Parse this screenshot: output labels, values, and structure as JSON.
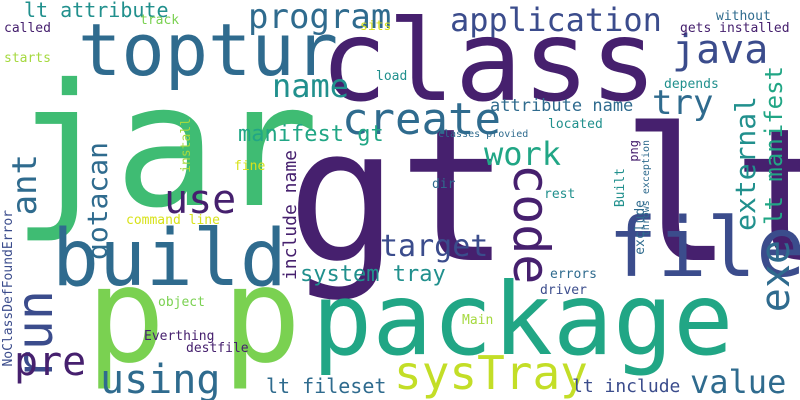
{
  "words": {
    "gt_lt": "gt lt",
    "jar": "jar",
    "class": "class",
    "p1": "p",
    "p2": "p",
    "package": "package",
    "build": "build",
    "file": "file",
    "topturn": "toptur",
    "create": "create",
    "code": "code",
    "java": "java",
    "program": "program",
    "application": "application",
    "sysTray": "sysTray",
    "run": "run",
    "pre": "pre",
    "using": "using",
    "use": "use",
    "work": "work",
    "target": "target",
    "try": "try",
    "name": "name",
    "value": "value",
    "ant": "ant",
    "gotacan": "gotacan",
    "external": "external",
    "lt_manifest": "lt manifest",
    "exe": "exe",
    "system_tray": "system tray",
    "manifest_gt": "manifest gt",
    "lt_attribute": "lt attribute",
    "attribute_name": "attribute name",
    "include_name": "include name",
    "lt_fileset": "lt fileset",
    "lt_include": "lt include",
    "track": "track",
    "called": "called",
    "sits": "sits",
    "without": "without",
    "gets_installed": "gets installed",
    "starts": "starts",
    "load": "load",
    "depends": "depends",
    "located": "located",
    "classes_provied": "classes provied",
    "install": "install",
    "fine": "fine",
    "png": "png",
    "throws_exception": "throws exception",
    "dir": "dir",
    "rest": "rest",
    "built": "Built",
    "exclude": "exclude",
    "noclassdef": "NoClassDefFoundError",
    "command_line": "command line",
    "errors": "errors",
    "driver": "driver",
    "object": "object",
    "main": "Main",
    "everthing": "Everthing",
    "destfile": "destfile"
  },
  "palette": {
    "dark_purple": "#46206e",
    "indigo": "#3b4c8c",
    "blue": "#2f6b8e",
    "teal": "#21908d",
    "green": "#2fb47c",
    "lime": "#7ad151",
    "yellow_green": "#a5d93f",
    "yellow": "#d8e21a"
  }
}
